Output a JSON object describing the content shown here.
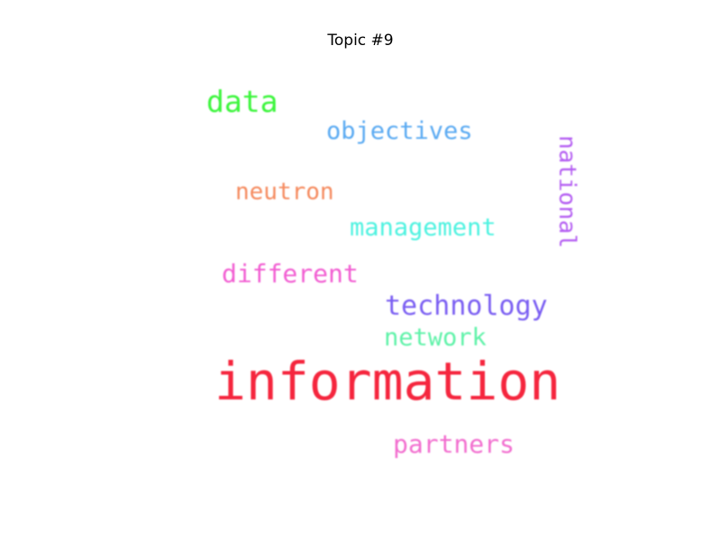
{
  "title": "Topic #9",
  "words": [
    {
      "id": "data",
      "text": "data",
      "color": "#3bf53b"
    },
    {
      "id": "objectives",
      "text": "objectives",
      "color": "#5aaaf2"
    },
    {
      "id": "national",
      "text": "national",
      "color": "#b45ef2",
      "orientation": "vertical"
    },
    {
      "id": "neutron",
      "text": "neutron",
      "color": "#f58a5e"
    },
    {
      "id": "management",
      "text": "management",
      "color": "#4df2e0"
    },
    {
      "id": "different",
      "text": "different",
      "color": "#f25ed2"
    },
    {
      "id": "technology",
      "text": "technology",
      "color": "#7a5ef2"
    },
    {
      "id": "network",
      "text": "network",
      "color": "#5ef2a8"
    },
    {
      "id": "information",
      "text": "information",
      "color": "#f5263e"
    },
    {
      "id": "partners",
      "text": "partners",
      "color": "#f26ecf"
    }
  ]
}
